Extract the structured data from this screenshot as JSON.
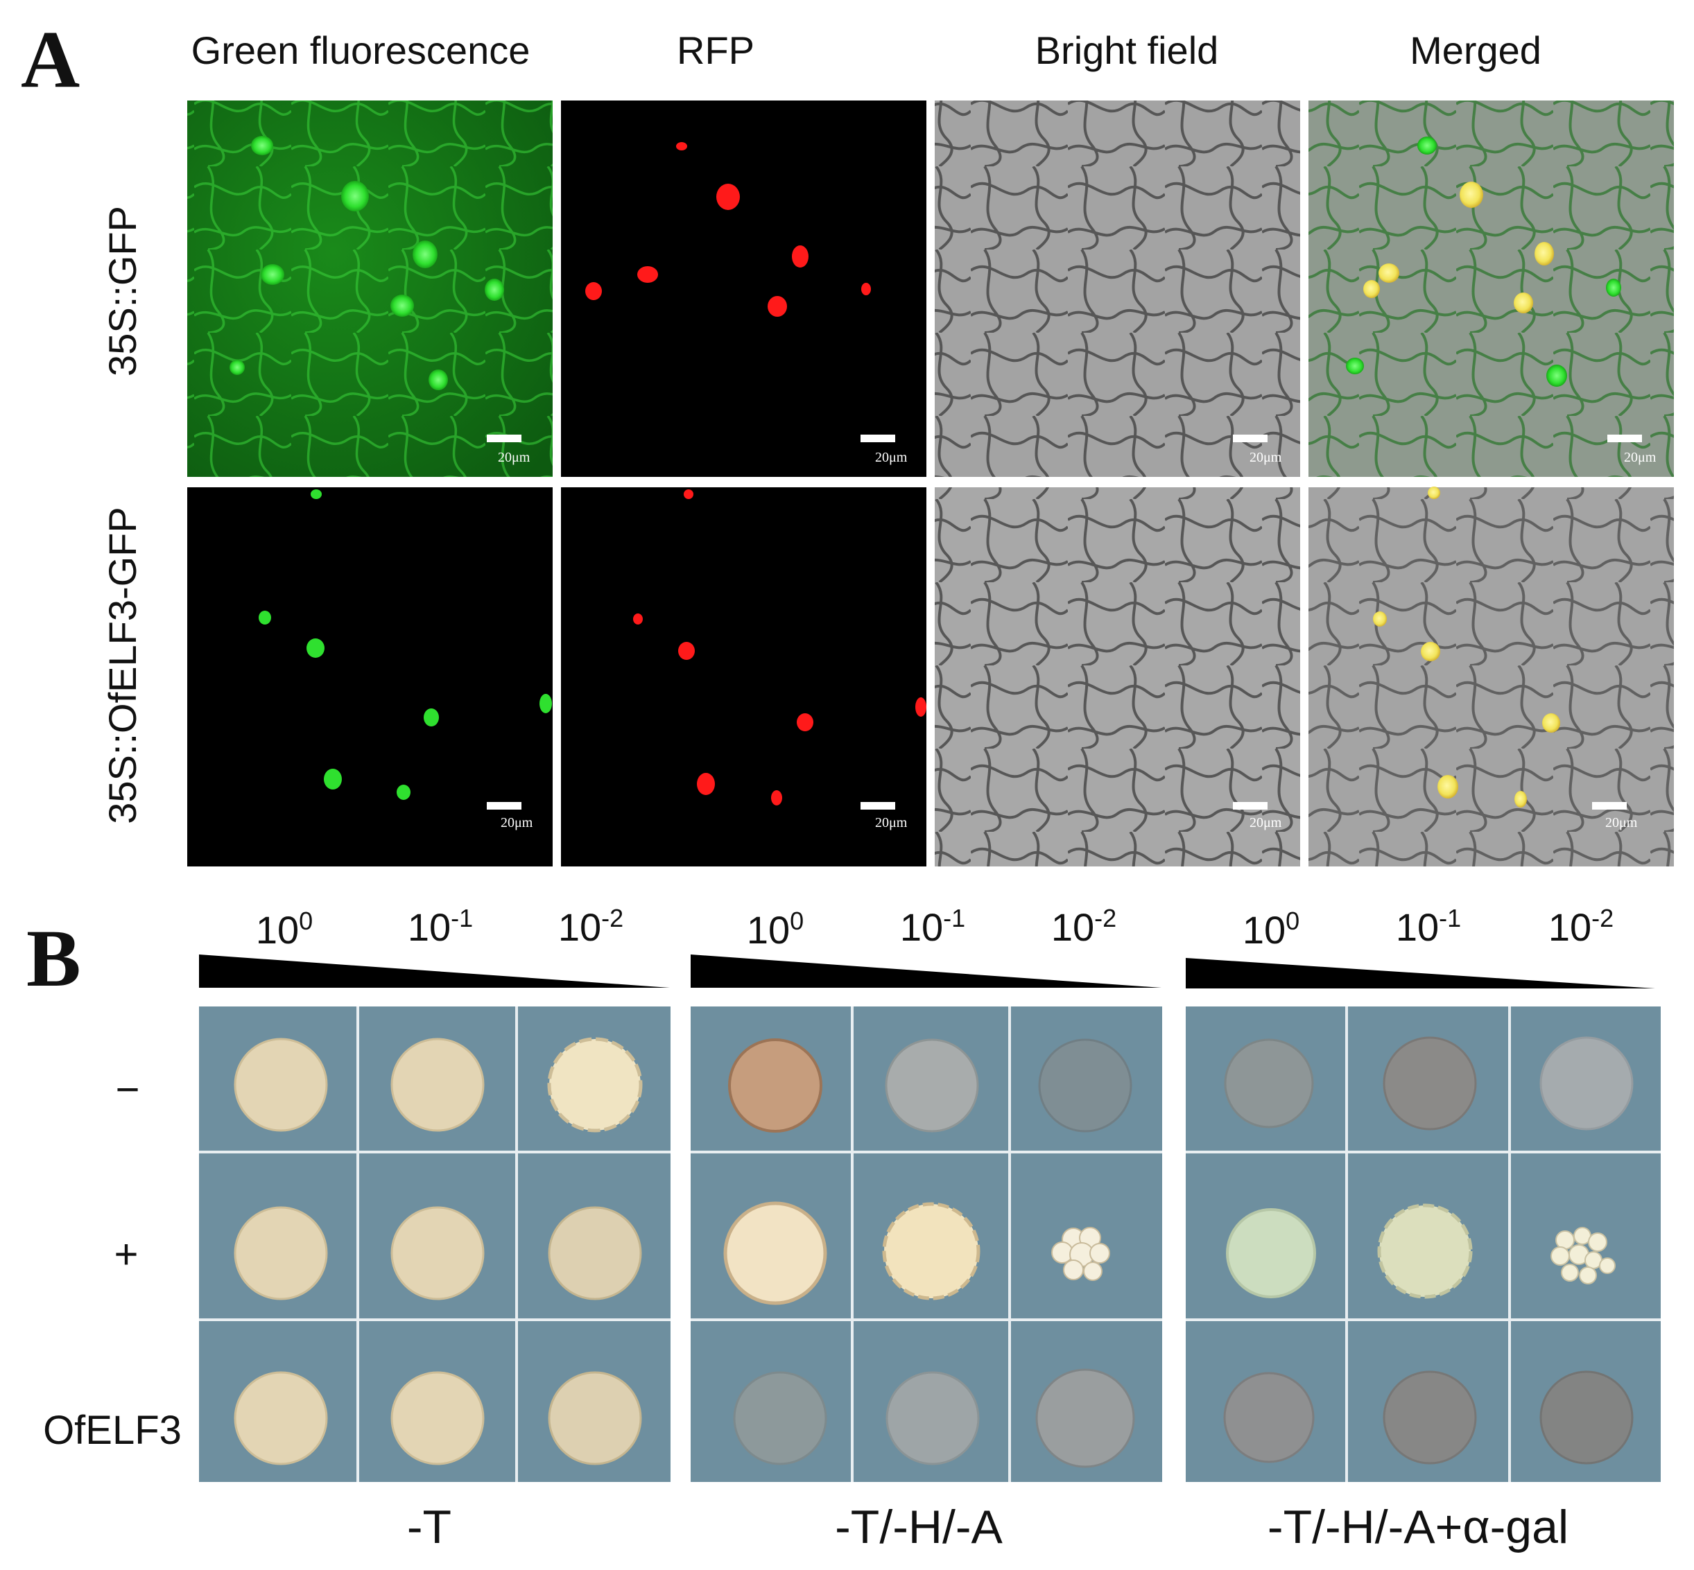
{
  "panel_a": {
    "letter": "A",
    "columns": [
      "Green fluorescence",
      "RFP",
      "Bright field",
      "Merged"
    ],
    "rows": [
      "35S::GFP",
      "35S::OfELF3-GFP"
    ],
    "scale_bar_label": "20μm"
  },
  "panel_b": {
    "letter": "B",
    "dilution_labels": [
      {
        "base": "10",
        "exp": "0"
      },
      {
        "base": "10",
        "exp": "-1"
      },
      {
        "base": "10",
        "exp": "-2"
      }
    ],
    "rows": [
      "−",
      "+",
      "OfELF3"
    ],
    "media": [
      "-T",
      "-T/-H/-A",
      "-T/-H/-A+α-gal"
    ]
  },
  "colors": {
    "plate_background": "#6e8f9f",
    "gfp_green": "#27d027",
    "rfp_red": "#ff1a1a",
    "merged_yellow": "#f2e45a",
    "bright_field_gray": "#9a9a9a"
  }
}
